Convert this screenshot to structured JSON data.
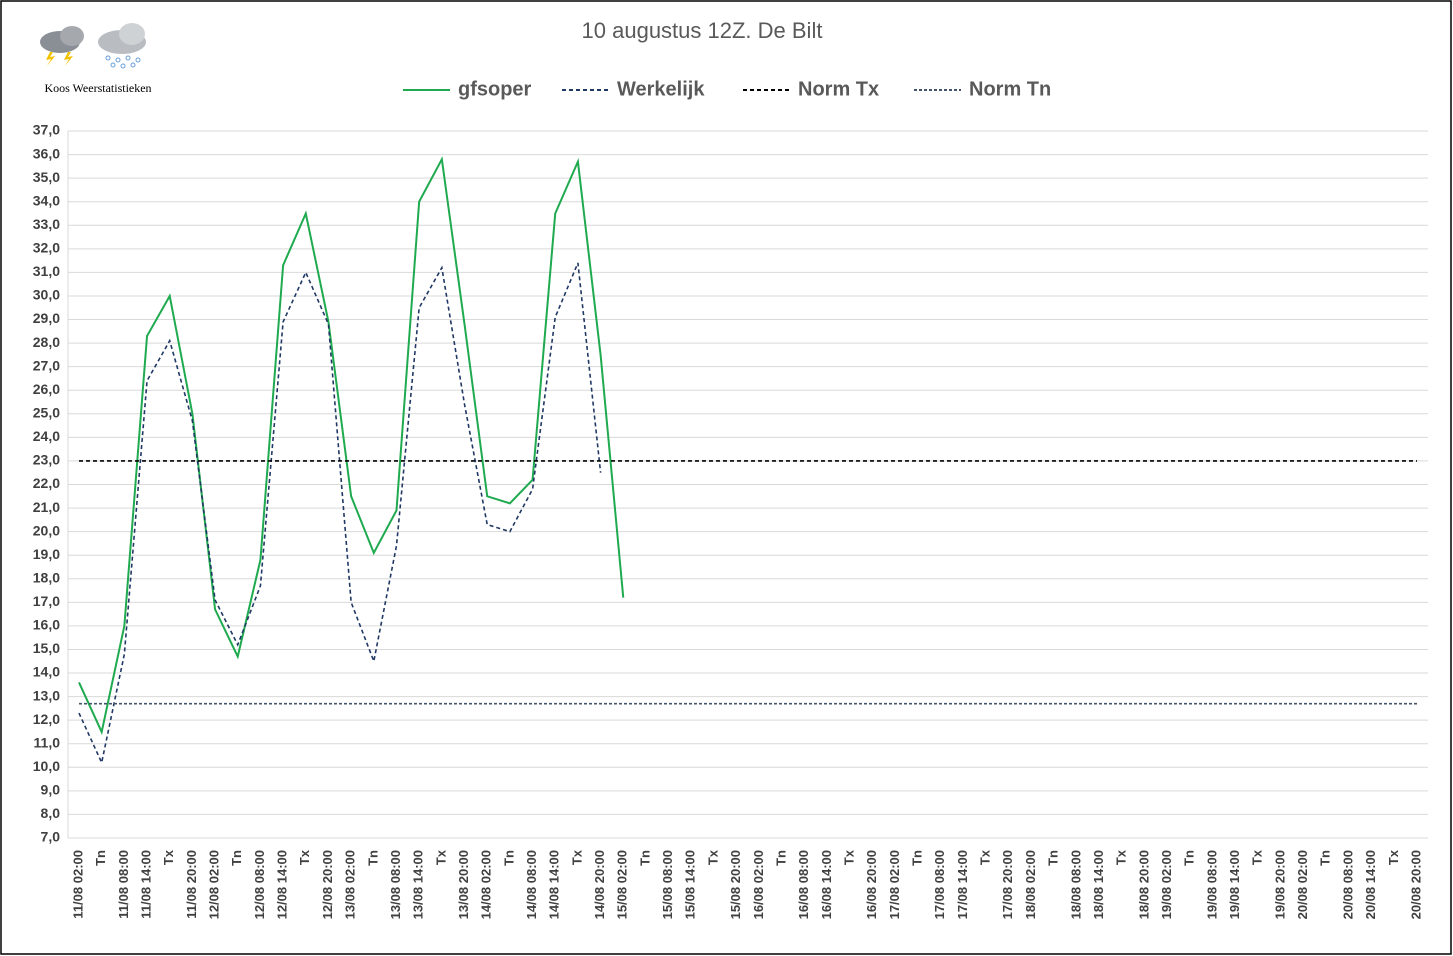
{
  "chart_data": {
    "type": "line",
    "title": "10 augustus 12Z. De Bilt",
    "source": "Koos Weerstatistieken",
    "categories": [
      "11/08 02:00",
      "Tn",
      "11/08 08:00",
      "11/08 14:00",
      "Tx",
      "11/08 20:00",
      "12/08 02:00",
      "Tn",
      "12/08 08:00",
      "12/08 14:00",
      "Tx",
      "12/08 20:00",
      "13/08 02:00",
      "Tn",
      "13/08 08:00",
      "13/08 14:00",
      "Tx",
      "13/08 20:00",
      "14/08 02:00",
      "Tn",
      "14/08 08:00",
      "14/08 14:00",
      "Tx",
      "14/08 20:00",
      "15/08 02:00",
      "Tn",
      "15/08 08:00",
      "15/08 14:00",
      "Tx",
      "15/08 20:00",
      "16/08 02:00",
      "Tn",
      "16/08 08:00",
      "16/08 14:00",
      "Tx",
      "16/08 20:00",
      "17/08 02:00",
      "Tn",
      "17/08 08:00",
      "17/08 14:00",
      "Tx",
      "17/08 20:00",
      "18/08 02:00",
      "Tn",
      "18/08 08:00",
      "18/08 14:00",
      "Tx",
      "18/08 20:00",
      "19/08 02:00",
      "Tn",
      "19/08 08:00",
      "19/08 14:00",
      "Tx",
      "19/08 20:00",
      "20/08 02:00",
      "Tn",
      "20/08 08:00",
      "20/08 14:00",
      "Tx",
      "20/08 20:00"
    ],
    "series": [
      {
        "name": "gfsoper",
        "color": "#1faa4f",
        "dash": "solid",
        "values": [
          13.6,
          11.5,
          16.0,
          28.3,
          30.0,
          25.0,
          16.7,
          14.7,
          18.8,
          31.3,
          33.5,
          28.9,
          21.5,
          19.1,
          20.9,
          34.0,
          35.8,
          28.8,
          21.5,
          21.2,
          22.2,
          33.5,
          35.7,
          27.5,
          17.2,
          null,
          null,
          null,
          null,
          null,
          null,
          null,
          null,
          null,
          null,
          null,
          null,
          null,
          null,
          null,
          null,
          null,
          null,
          null,
          null,
          null,
          null,
          null,
          null,
          null,
          null,
          null,
          null,
          null,
          null,
          null,
          null,
          null,
          null,
          null
        ]
      },
      {
        "name": "Werkelijk",
        "color": "#203864",
        "dash": "dashed",
        "values": [
          12.3,
          10.2,
          14.8,
          26.4,
          28.1,
          24.7,
          17.1,
          15.2,
          17.7,
          28.9,
          31.0,
          28.8,
          17.0,
          14.5,
          19.4,
          29.5,
          31.2,
          25.4,
          20.3,
          20.0,
          21.8,
          29.1,
          31.4,
          22.5,
          null,
          null,
          null,
          null,
          null,
          null,
          null,
          null,
          null,
          null,
          null,
          null,
          null,
          null,
          null,
          null,
          null,
          null,
          null,
          null,
          null,
          null,
          null,
          null,
          null,
          null,
          null,
          null,
          null,
          null,
          null,
          null,
          null,
          null,
          null,
          null
        ]
      },
      {
        "name": "Norm Tx",
        "color": "#000000",
        "dash": "dashed",
        "values": [
          23,
          23,
          23,
          23,
          23,
          23,
          23,
          23,
          23,
          23,
          23,
          23,
          23,
          23,
          23,
          23,
          23,
          23,
          23,
          23,
          23,
          23,
          23,
          23,
          23,
          23,
          23,
          23,
          23,
          23,
          23,
          23,
          23,
          23,
          23,
          23,
          23,
          23,
          23,
          23,
          23,
          23,
          23,
          23,
          23,
          23,
          23,
          23,
          23,
          23,
          23,
          23,
          23,
          23,
          23,
          23,
          23,
          23,
          23,
          23
        ]
      },
      {
        "name": "Norm Tn",
        "color": "#44546a",
        "dash": "dashed",
        "values": [
          12.7,
          12.7,
          12.7,
          12.7,
          12.7,
          12.7,
          12.7,
          12.7,
          12.7,
          12.7,
          12.7,
          12.7,
          12.7,
          12.7,
          12.7,
          12.7,
          12.7,
          12.7,
          12.7,
          12.7,
          12.7,
          12.7,
          12.7,
          12.7,
          12.7,
          12.7,
          12.7,
          12.7,
          12.7,
          12.7,
          12.7,
          12.7,
          12.7,
          12.7,
          12.7,
          12.7,
          12.7,
          12.7,
          12.7,
          12.7,
          12.7,
          12.7,
          12.7,
          12.7,
          12.7,
          12.7,
          12.7,
          12.7,
          12.7,
          12.7,
          12.7,
          12.7,
          12.7,
          12.7,
          12.7,
          12.7,
          12.7,
          12.7,
          12.7,
          12.7
        ]
      }
    ],
    "ylim": [
      7,
      37
    ],
    "yticks": [
      {
        "value": 7,
        "label": "7,0"
      },
      {
        "value": 8,
        "label": "8,0"
      },
      {
        "value": 9,
        "label": "9,0"
      },
      {
        "value": 10,
        "label": "10,0"
      },
      {
        "value": 11,
        "label": "11,0"
      },
      {
        "value": 12,
        "label": "12,0"
      },
      {
        "value": 13,
        "label": "13,0"
      },
      {
        "value": 14,
        "label": "14,0"
      },
      {
        "value": 15,
        "label": "15,0"
      },
      {
        "value": 16,
        "label": "16,0"
      },
      {
        "value": 17,
        "label": "17,0"
      },
      {
        "value": 18,
        "label": "18,0"
      },
      {
        "value": 19,
        "label": "19,0"
      },
      {
        "value": 20,
        "label": "20,0"
      },
      {
        "value": 21,
        "label": "21,0"
      },
      {
        "value": 22,
        "label": "22,0"
      },
      {
        "value": 23,
        "label": "23,0"
      },
      {
        "value": 24,
        "label": "24,0"
      },
      {
        "value": 25,
        "label": "25,0"
      },
      {
        "value": 26,
        "label": "26,0"
      },
      {
        "value": 27,
        "label": "27,0"
      },
      {
        "value": 28,
        "label": "28,0"
      },
      {
        "value": 29,
        "label": "29,0"
      },
      {
        "value": 30,
        "label": "30,0"
      },
      {
        "value": 31,
        "label": "31,0"
      },
      {
        "value": 32,
        "label": "32,0"
      },
      {
        "value": 33,
        "label": "33,0"
      },
      {
        "value": 34,
        "label": "34,0"
      },
      {
        "value": 35,
        "label": "35,0"
      },
      {
        "value": 36,
        "label": "36,0"
      },
      {
        "value": 37,
        "label": "37,0"
      }
    ],
    "grid": true,
    "legend": "top"
  }
}
